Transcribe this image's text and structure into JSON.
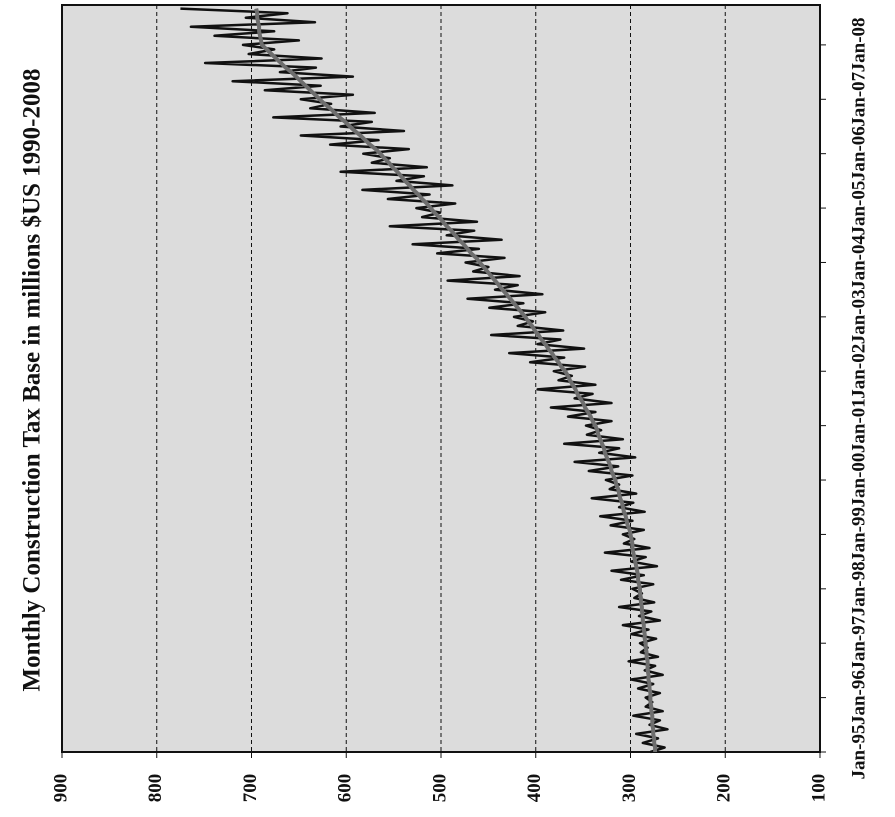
{
  "chart_data": {
    "type": "line",
    "title": "Monthly Construction Tax Base in millions  $US 1990-2008",
    "categories": [
      "Jan-95",
      null,
      null,
      null,
      null,
      null,
      null,
      null,
      null,
      null,
      null,
      null,
      "Jan-96",
      null,
      null,
      null,
      null,
      null,
      null,
      null,
      null,
      null,
      null,
      null,
      "Jan-97",
      null,
      null,
      null,
      null,
      null,
      null,
      null,
      null,
      null,
      null,
      null,
      "Jan-98",
      null,
      null,
      null,
      null,
      null,
      null,
      null,
      null,
      null,
      null,
      null,
      "Jan-99",
      null,
      null,
      null,
      null,
      null,
      null,
      null,
      null,
      null,
      null,
      null,
      "Jan-00",
      null,
      null,
      null,
      null,
      null,
      null,
      null,
      null,
      null,
      null,
      null,
      "Jan-01",
      null,
      null,
      null,
      null,
      null,
      null,
      null,
      null,
      null,
      null,
      null,
      "Jan-02",
      null,
      null,
      null,
      null,
      null,
      null,
      null,
      null,
      null,
      null,
      null,
      "Jan-03",
      null,
      null,
      null,
      null,
      null,
      null,
      null,
      null,
      null,
      null,
      null,
      "Jan-04",
      null,
      null,
      null,
      null,
      null,
      null,
      null,
      null,
      null,
      null,
      null,
      "Jan-05",
      null,
      null,
      null,
      null,
      null,
      null,
      null,
      null,
      null,
      null,
      null,
      "Jan-06",
      null,
      null,
      null,
      null,
      null,
      null,
      null,
      null,
      null,
      null,
      null,
      "Jan-07",
      null,
      null,
      null,
      null,
      null,
      null,
      null,
      null,
      null,
      null,
      null,
      "Jan-08",
      null,
      null,
      null,
      null,
      null,
      null,
      null,
      null
    ],
    "series": [
      {
        "color": "#111111",
        "values": [
          279,
          264,
          287,
          271,
          294,
          261,
          280,
          269,
          297,
          266,
          284,
          277,
          284,
          269,
          292,
          276,
          299,
          266,
          285,
          274,
          302,
          271,
          289,
          282,
          290,
          273,
          299,
          281,
          308,
          269,
          291,
          278,
          312,
          275,
          296,
          288,
          298,
          276,
          310,
          286,
          320,
          272,
          299,
          284,
          327,
          280,
          307,
          296,
          308,
          286,
          321,
          298,
          332,
          285,
          312,
          297,
          341,
          294,
          322,
          312,
          326,
          298,
          344,
          313,
          359,
          295,
          333,
          312,
          370,
          308,
          346,
          331,
          347,
          320,
          366,
          337,
          384,
          320,
          359,
          340,
          398,
          337,
          376,
          362,
          381,
          348,
          406,
          370,
          428,
          349,
          398,
          374,
          447,
          371,
          419,
          403,
          423,
          390,
          449,
          413,
          472,
          393,
          443,
          419,
          493,
          417,
          466,
          450,
          474,
          433,
          504,
          460,
          530,
          436,
          494,
          465,
          554,
          462,
          520,
          501,
          526,
          485,
          556,
          512,
          583,
          488,
          547,
          518,
          606,
          515,
          573,
          554,
          582,
          534,
          617,
          566,
          648,
          539,
          606,
          573,
          677,
          570,
          638,
          616,
          648,
          593,
          686,
          627,
          720,
          593,
          670,
          632,
          749,
          626,
          703,
          676,
          709,
          650,
          739,
          676,
          764,
          633,
          706,
          662,
          775
        ]
      },
      {
        "color": "#6e6e6e",
        "values": [
          274,
          274,
          275,
          275,
          276,
          276,
          277,
          277,
          277,
          278,
          278,
          279,
          279,
          279,
          280,
          280,
          281,
          281,
          282,
          282,
          282,
          283,
          283,
          284,
          284,
          285,
          285,
          286,
          286,
          287,
          287,
          288,
          288,
          289,
          289,
          290,
          290,
          291,
          292,
          292,
          293,
          294,
          295,
          296,
          297,
          298,
          298,
          299,
          300,
          301,
          303,
          304,
          305,
          307,
          308,
          309,
          311,
          312,
          313,
          315,
          316,
          318,
          320,
          321,
          323,
          325,
          327,
          328,
          330,
          332,
          334,
          335,
          337,
          340,
          342,
          345,
          348,
          350,
          353,
          356,
          358,
          361,
          364,
          366,
          369,
          373,
          376,
          380,
          383,
          387,
          390,
          394,
          397,
          401,
          404,
          408,
          411,
          415,
          419,
          423,
          427,
          431,
          435,
          439,
          443,
          447,
          451,
          455,
          459,
          463,
          468,
          472,
          476,
          481,
          485,
          489,
          494,
          498,
          502,
          507,
          511,
          515,
          520,
          524,
          529,
          533,
          538,
          542,
          546,
          551,
          555,
          560,
          564,
          569,
          575,
          580,
          585,
          591,
          596,
          601,
          607,
          612,
          617,
          623,
          628,
          633,
          638,
          643,
          648,
          653,
          658,
          664,
          669,
          674,
          679,
          684,
          689,
          690,
          691,
          692,
          692,
          693,
          694,
          694,
          695
        ]
      }
    ],
    "ylim": [
      900,
      100
    ],
    "yticks": [
      900,
      800,
      700,
      600,
      500,
      400,
      300,
      200,
      100
    ],
    "grid": true
  }
}
